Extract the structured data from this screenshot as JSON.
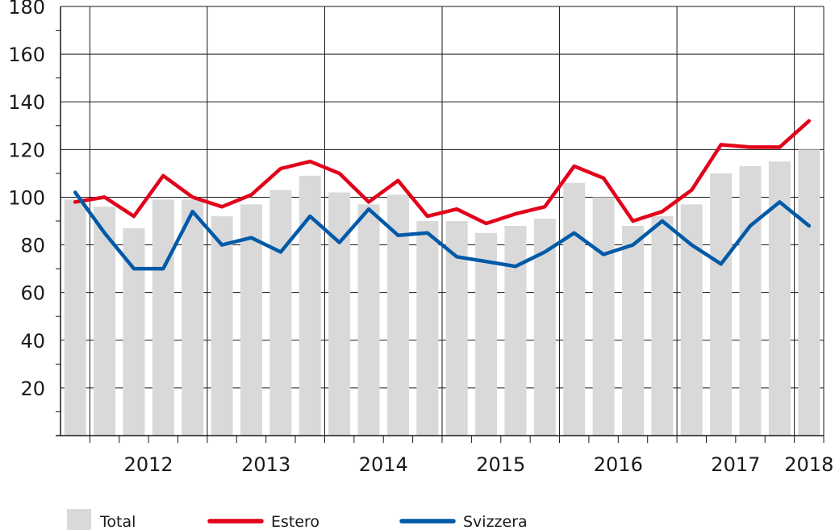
{
  "chart_data": {
    "type": "bar",
    "title": "",
    "xlabel": "",
    "ylabel": "",
    "ylim": [
      0,
      180
    ],
    "yticks": [
      20,
      40,
      60,
      80,
      100,
      120,
      140,
      160,
      180
    ],
    "year_labels": [
      "2012",
      "2013",
      "2014",
      "2015",
      "2016",
      "2017",
      "2018"
    ],
    "grid": true,
    "legend_position": "bottom",
    "colors": {
      "Total": "#d9d9da",
      "Estero": "#e2001a",
      "Svizzera": "#005aa8"
    },
    "series": [
      {
        "name": "Total",
        "type": "bar",
        "values": [
          99,
          96,
          87,
          99,
          99,
          92,
          97,
          103,
          109,
          102,
          97,
          101,
          90,
          90,
          85,
          88,
          91,
          106,
          100,
          88,
          92,
          97,
          110,
          113,
          115,
          120
        ]
      },
      {
        "name": "Estero",
        "type": "line",
        "values": [
          98,
          100,
          92,
          109,
          100,
          96,
          101,
          112,
          115,
          110,
          98,
          107,
          92,
          95,
          89,
          93,
          96,
          113,
          108,
          90,
          94,
          103,
          122,
          121,
          121,
          132
        ]
      },
      {
        "name": "Svizzera",
        "type": "line",
        "values": [
          102,
          85,
          70,
          70,
          94,
          80,
          83,
          77,
          92,
          81,
          95,
          84,
          85,
          75,
          73,
          71,
          77,
          85,
          76,
          80,
          90,
          80,
          72,
          88,
          98,
          88
        ]
      }
    ]
  }
}
